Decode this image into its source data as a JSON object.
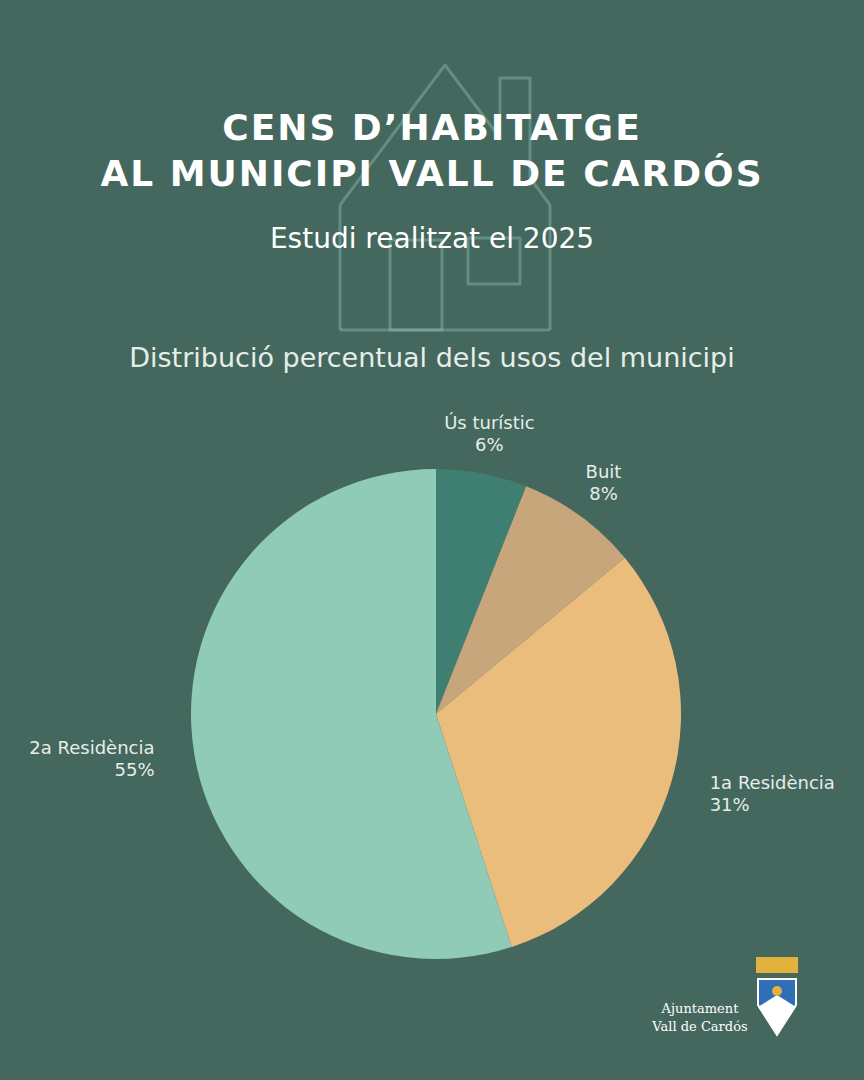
{
  "chart_data": {
    "type": "pie",
    "title": "CENS D’HABITATGE\nAL MUNICIPI VALL DE CARDÓS",
    "subtitle": "Estudi realitzat el 2025",
    "annotations": [
      "Distribució percentual dels usos del municipi",
      "Ajuntament\nVall de Cardós"
    ],
    "categories": [
      "Ús turístic",
      "Buit",
      "1a Residència",
      "2a Residència"
    ],
    "values": [
      6,
      8,
      31,
      55
    ],
    "value_labels": [
      "6%",
      "8%",
      "31%",
      "55%"
    ],
    "colors": [
      "#3f7f71",
      "#c6a67a",
      "#ebbd7d",
      "#8fcbb6"
    ],
    "data_labels": true
  }
}
